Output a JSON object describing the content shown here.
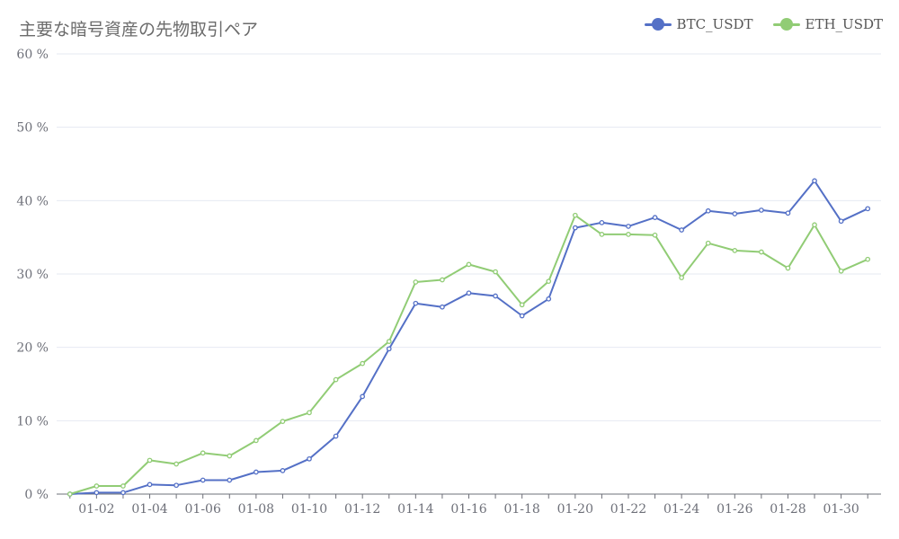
{
  "chart_data": {
    "type": "line",
    "title": "主要な暗号資産の先物取引ペア",
    "xlabel": "",
    "ylabel": "",
    "ylim": [
      0,
      60
    ],
    "y_ticks": [
      0,
      10,
      20,
      30,
      40,
      50,
      60
    ],
    "y_tick_labels": [
      "0 %",
      "10 %",
      "20 %",
      "30 %",
      "40 %",
      "50 %",
      "60 %"
    ],
    "x": [
      "01-01",
      "01-02",
      "01-03",
      "01-04",
      "01-05",
      "01-06",
      "01-07",
      "01-08",
      "01-09",
      "01-10",
      "01-11",
      "01-12",
      "01-13",
      "01-14",
      "01-15",
      "01-16",
      "01-17",
      "01-18",
      "01-19",
      "01-20",
      "01-21",
      "01-22",
      "01-23",
      "01-24",
      "01-25",
      "01-26",
      "01-27",
      "01-28",
      "01-29",
      "01-30",
      "01-31"
    ],
    "x_tick_labels": [
      "01-02",
      "01-04",
      "01-06",
      "01-08",
      "01-10",
      "01-12",
      "01-14",
      "01-16",
      "01-18",
      "01-20",
      "01-22",
      "01-24",
      "01-26",
      "01-28",
      "01-30"
    ],
    "grid": true,
    "legend_position": "top-right",
    "series": [
      {
        "name": "BTC_USDT",
        "color": "#5470c6",
        "values": [
          0,
          0.2,
          0.2,
          1.3,
          1.2,
          1.9,
          1.9,
          3.0,
          3.2,
          4.8,
          7.9,
          13.3,
          19.8,
          26.0,
          25.5,
          27.4,
          27.0,
          24.3,
          26.6,
          36.3,
          37.0,
          36.5,
          37.7,
          36.0,
          38.6,
          38.2,
          38.7,
          38.3,
          42.7,
          37.2,
          38.9
        ]
      },
      {
        "name": "ETH_USDT",
        "color": "#91cc75",
        "values": [
          0,
          1.1,
          1.1,
          4.6,
          4.1,
          5.6,
          5.2,
          7.3,
          9.9,
          11.1,
          15.6,
          17.8,
          20.8,
          28.9,
          29.2,
          31.3,
          30.3,
          25.8,
          29.0,
          38.0,
          35.4,
          35.4,
          35.3,
          29.5,
          34.2,
          33.2,
          33.0,
          30.8,
          36.7,
          30.4,
          32.0
        ]
      }
    ]
  }
}
